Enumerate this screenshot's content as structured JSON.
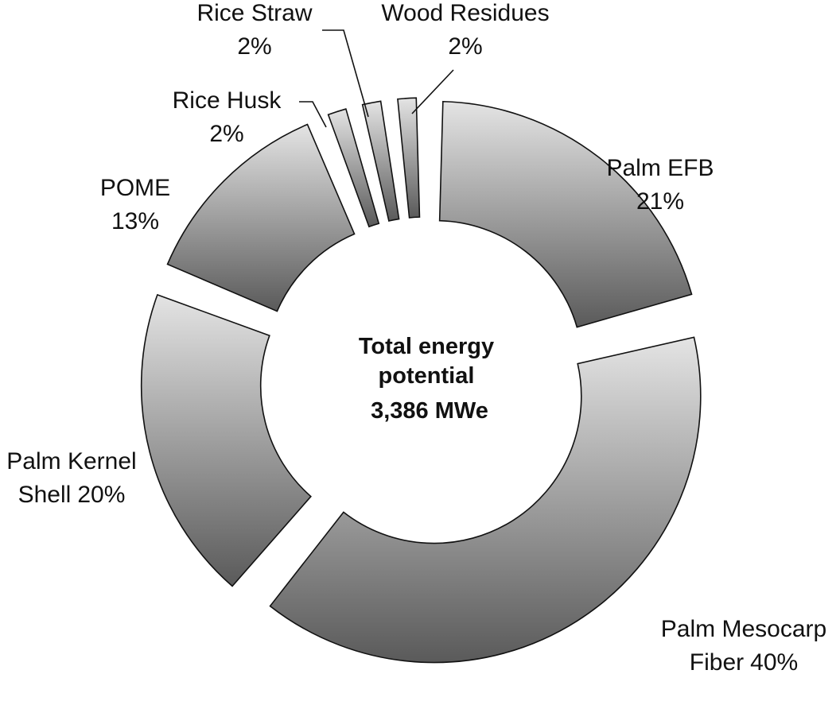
{
  "chart_data": {
    "type": "donut",
    "center_label": "Total energy potential 3,386 MWe",
    "categories": [
      "Palm EFB",
      "Palm Mesocarp Fiber",
      "Palm Kernel Shell",
      "POME",
      "Rice Husk",
      "Rice Straw",
      "Wood Residues"
    ],
    "values": [
      21,
      40,
      20,
      13,
      2,
      2,
      2
    ],
    "value_labels": [
      "21%",
      "40%",
      "20%",
      "13%",
      "2%",
      "2%",
      "2%"
    ],
    "gradient": [
      "#e4e4e4",
      "#5a5a5a"
    ]
  }
}
